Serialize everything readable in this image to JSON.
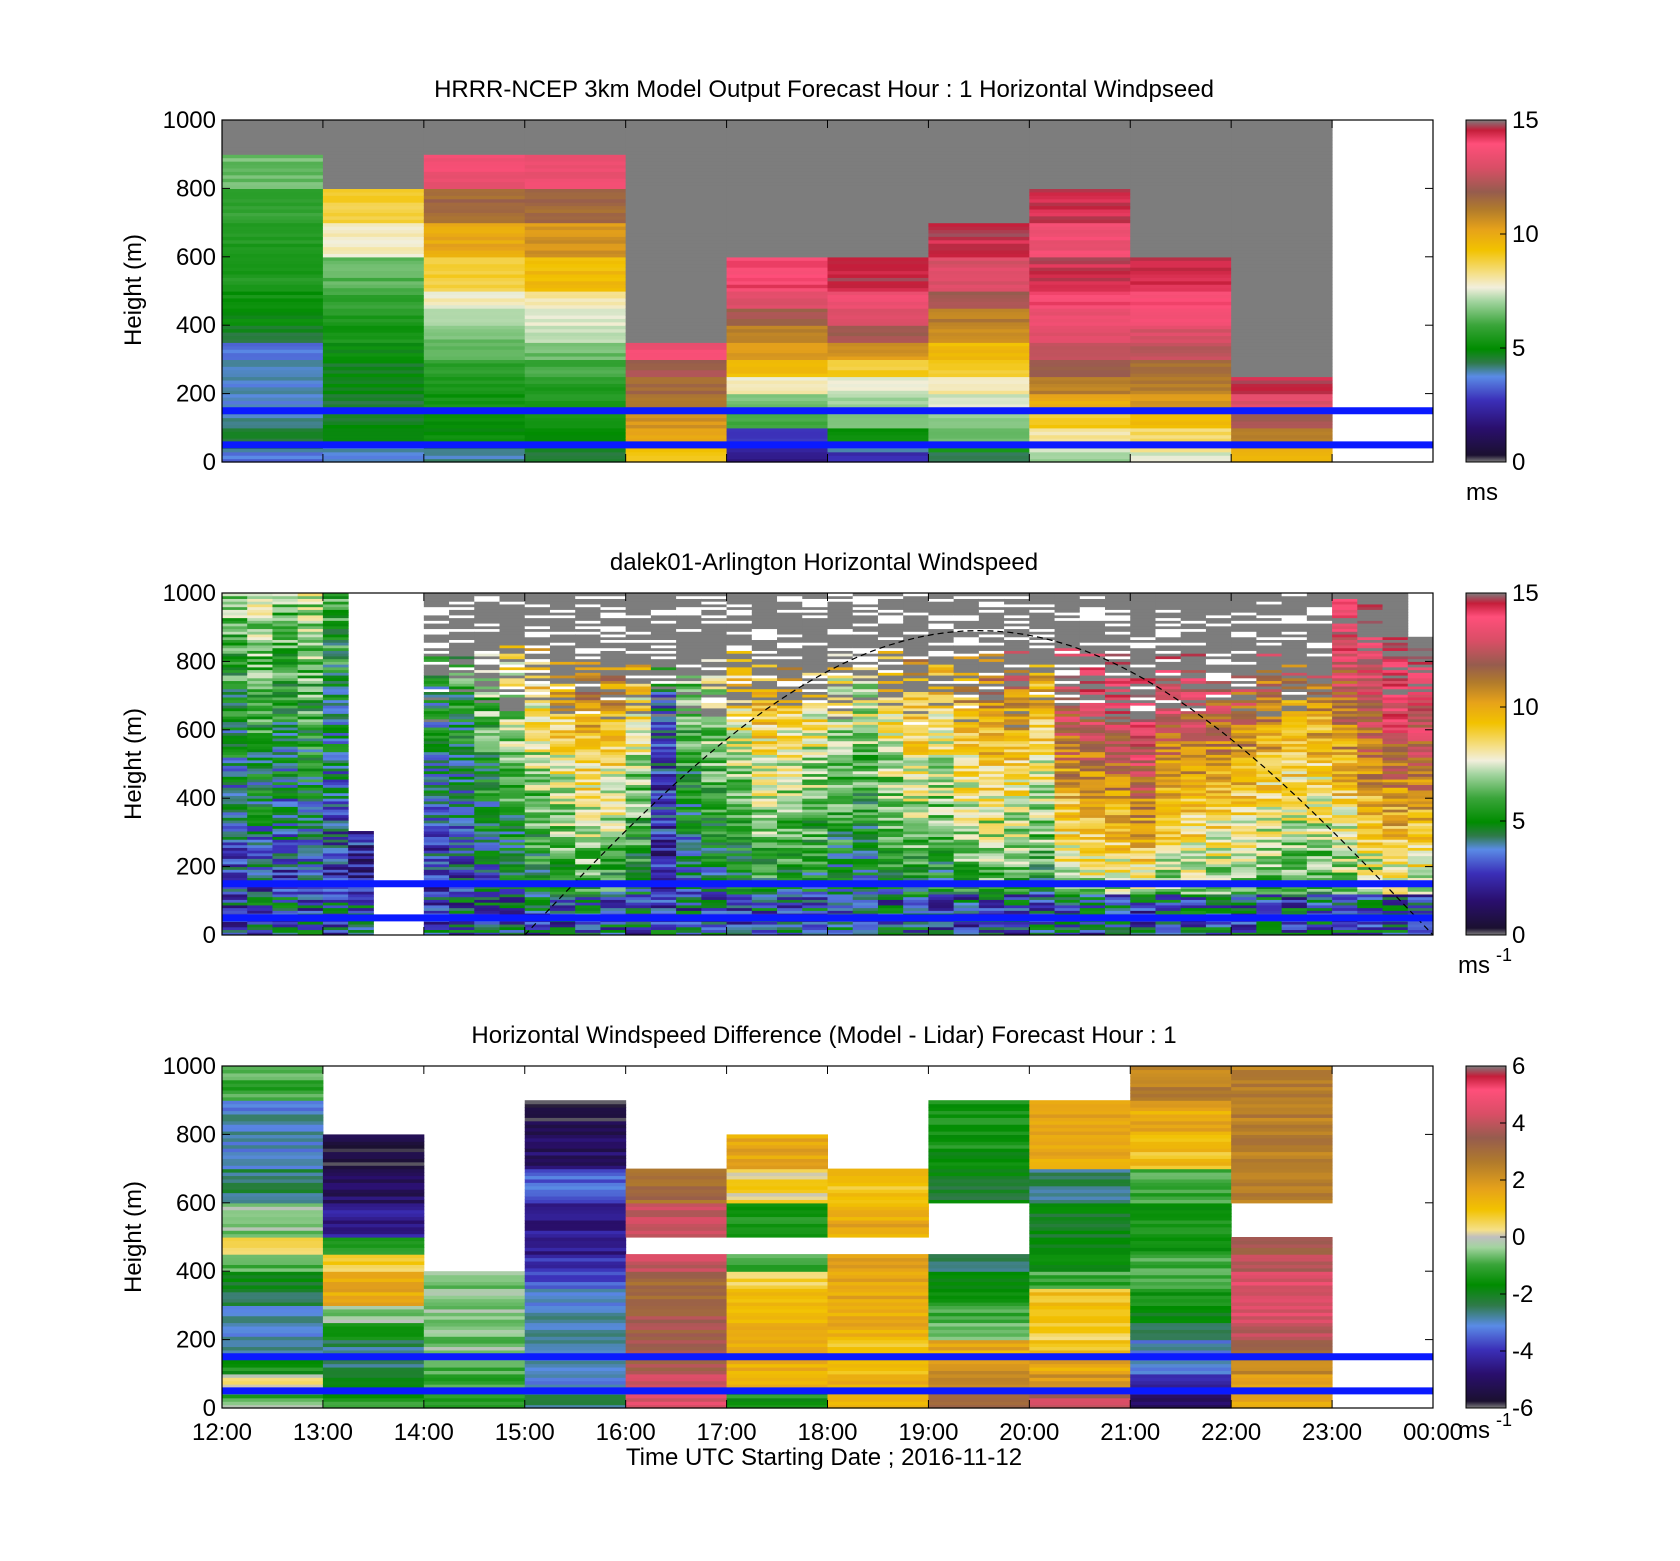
{
  "figure": {
    "xlabel": "Time UTC  Starting Date ; 2016-11-12",
    "x_ticks": [
      "12:00",
      "13:00",
      "14:00",
      "15:00",
      "16:00",
      "17:00",
      "18:00",
      "19:00",
      "20:00",
      "21:00",
      "22:00",
      "23:00",
      "00:00"
    ]
  },
  "chart_data": [
    {
      "type": "heatmap",
      "title": "HRRR-NCEP 3km Model Output   Forecast Hour : 1 Horizontal Windpseed",
      "ylabel": "Height (m)",
      "xlim": [
        0,
        12
      ],
      "ylim": [
        0,
        1000
      ],
      "y_ticks": [
        "0",
        "200",
        "400",
        "600",
        "800",
        "1000"
      ],
      "colorbar": {
        "ticks": [
          "0",
          "5",
          "10",
          "15"
        ],
        "range": [
          0,
          15
        ],
        "unit_label": "ms",
        "unit_sup": ""
      },
      "reference_lines_m": [
        50,
        150
      ],
      "profile_heights_m": [
        0,
        30,
        60,
        100,
        150,
        200,
        250,
        300,
        350,
        400,
        450,
        500,
        600,
        700,
        800,
        900,
        1000
      ],
      "profiles": [
        {
          "hour": 0,
          "values": [
            3.5,
            4.2,
            4.5,
            4.0,
            3.8,
            3.8,
            3.8,
            3.5,
            4.5,
            5.0,
            5.2,
            5.5,
            5.5,
            5.8,
            6.5,
            0.0
          ]
        },
        {
          "hour": 1,
          "values": [
            3.8,
            4.0,
            4.6,
            4.8,
            4.5,
            4.8,
            4.8,
            5.0,
            5.3,
            5.6,
            5.9,
            6.3,
            7.8,
            8.8,
            0.0,
            0.0
          ]
        },
        {
          "hour": 2,
          "values": [
            4.0,
            4.3,
            5.0,
            5.1,
            5.3,
            5.5,
            5.8,
            6.2,
            6.6,
            7.4,
            7.8,
            8.8,
            10.0,
            11.5,
            13.5,
            0.0
          ]
        },
        {
          "hour": 3,
          "values": [
            4.3,
            4.6,
            4.9,
            5.2,
            5.4,
            5.6,
            6.0,
            6.5,
            7.2,
            7.5,
            8.0,
            9.5,
            10.5,
            11.5,
            13.5,
            0.0
          ]
        },
        {
          "hour": 4,
          "values": [
            9.0,
            9.5,
            10.0,
            10.5,
            11.0,
            11.5,
            12.0,
            13.5,
            0.0,
            0.0,
            0.0,
            0.0,
            0.0,
            0.0,
            0.0,
            0.0
          ]
        },
        {
          "hour": 5,
          "values": [
            2.0,
            2.5,
            3.0,
            6.0,
            6.5,
            7.8,
            9.5,
            10.5,
            11.0,
            12.0,
            13.0,
            14.0,
            0.0,
            0.0,
            0.0,
            0.0
          ]
        },
        {
          "hour": 6,
          "values": [
            2.5,
            4.0,
            5.0,
            6.5,
            7.0,
            7.5,
            9.0,
            10.5,
            12.0,
            13.0,
            13.5,
            14.5,
            0.0,
            0.0,
            0.0,
            0.0
          ]
        },
        {
          "hour": 7,
          "values": [
            4.5,
            5.5,
            6.5,
            7.0,
            7.5,
            8.0,
            9.0,
            9.5,
            10.5,
            11.0,
            12.0,
            13.0,
            14.5,
            0.0,
            0.0,
            0.0
          ]
        },
        {
          "hour": 8,
          "values": [
            7.0,
            7.5,
            8.0,
            9.0,
            10.0,
            11.0,
            12.0,
            12.5,
            13.0,
            13.5,
            14.0,
            14.5,
            13.5,
            14.5,
            0.0,
            0.0
          ]
        },
        {
          "hour": 9,
          "values": [
            7.5,
            8.0,
            8.5,
            9.5,
            10.5,
            11.0,
            11.5,
            12.5,
            13.0,
            13.5,
            14.0,
            14.5,
            0.0,
            0.0,
            0.0,
            0.0
          ]
        },
        {
          "hour": 10,
          "values": [
            9.5,
            10.0,
            11.0,
            12.0,
            13.0,
            14.5,
            0.0,
            0.0,
            0.0,
            0.0,
            0.0,
            0.0,
            0.0,
            0.0,
            0.0,
            0.0
          ]
        }
      ]
    },
    {
      "type": "heatmap",
      "title": "dalek01-Arlington  Horizontal Windspeed",
      "ylabel": "Height (m)",
      "xlim": [
        0,
        12
      ],
      "ylim": [
        0,
        1000
      ],
      "y_ticks": [
        "0",
        "200",
        "400",
        "600",
        "800",
        "1000"
      ],
      "colorbar": {
        "ticks": [
          "0",
          "5",
          "10",
          "15"
        ],
        "range": [
          0,
          15
        ],
        "unit_label": "ms",
        "unit_sup": "-1"
      },
      "reference_lines_m": [
        50,
        150
      ],
      "boundary_layer_curve": {
        "start_hour": 3.0,
        "end_hour": 12.0,
        "peak_hour": 7.5,
        "peak_height_m": 890
      },
      "profile_times_h": [
        0.0,
        0.25,
        0.5,
        0.75,
        1.0,
        1.25,
        1.5,
        1.75,
        2.0,
        2.25,
        2.5,
        2.75,
        3.0,
        3.25,
        3.5,
        3.75,
        4.0,
        4.25,
        4.5,
        4.75,
        5.0,
        5.25,
        5.5,
        5.75,
        6.0,
        6.25,
        6.5,
        6.75,
        7.0,
        7.25,
        7.5,
        7.75,
        8.0,
        8.25,
        8.5,
        8.75,
        9.0,
        9.25,
        9.5,
        9.75,
        10.0,
        10.25,
        10.5,
        10.75,
        11.0,
        11.25,
        11.5,
        11.75
      ],
      "profiles_mean_speed": [
        5.0,
        5.5,
        5.0,
        5.5,
        4.5,
        3.5,
        0.0,
        0.0,
        4.5,
        5.0,
        6.0,
        7.0,
        8.0,
        9.0,
        10.0,
        9.5,
        8.0,
        3.5,
        6.0,
        7.0,
        8.0,
        9.0,
        8.5,
        8.0,
        7.5,
        7.0,
        8.0,
        9.0,
        8.5,
        9.5,
        10.0,
        10.0,
        9.0,
        12.0,
        12.5,
        13.0,
        14.0,
        12.0,
        12.0,
        11.5,
        11.0,
        10.5,
        10.0,
        10.0,
        11.0,
        12.0,
        13.0,
        13.0
      ],
      "profiles_top_height_m": [
        1000,
        1000,
        1000,
        1000,
        1000,
        300,
        0,
        0,
        1000,
        1000,
        1000,
        1000,
        1000,
        1000,
        1000,
        1000,
        1000,
        1000,
        1000,
        1000,
        1000,
        1000,
        1000,
        1000,
        1000,
        1000,
        1000,
        1000,
        1000,
        1000,
        1000,
        1000,
        1000,
        1000,
        1000,
        1000,
        1000,
        1000,
        1000,
        1000,
        1000,
        1000,
        1000,
        1000,
        1000,
        1000,
        1000,
        870
      ]
    },
    {
      "type": "heatmap",
      "title": "Horizontal Windspeed Difference (Model - Lidar) Forecast Hour : 1",
      "ylabel": "Height (m)",
      "xlim": [
        0,
        12
      ],
      "ylim": [
        0,
        1000
      ],
      "y_ticks": [
        "0",
        "200",
        "400",
        "600",
        "800",
        "1000"
      ],
      "colorbar": {
        "ticks": [
          "-6",
          "-4",
          "-2",
          "0",
          "2",
          "4",
          "6"
        ],
        "range": [
          -6,
          6
        ],
        "unit_label": "ms",
        "unit_sup": "-1"
      },
      "reference_lines_m": [
        50,
        150
      ],
      "profile_heights_m": [
        0,
        30,
        60,
        100,
        150,
        200,
        250,
        300,
        350,
        400,
        450,
        500,
        600,
        700,
        800,
        900,
        1000
      ],
      "profiles": [
        {
          "hour": 0,
          "values": [
            -0.5,
            -1.0,
            0.3,
            -1.5,
            -2.5,
            -3.0,
            -2.8,
            -2.5,
            -2.0,
            -1.0,
            0.5,
            -0.5,
            -2.5,
            -3.0,
            -3.0,
            -1.0
          ]
        },
        {
          "hour": 1,
          "values": [
            -1.0,
            -1.5,
            -2.0,
            -2.5,
            -2.5,
            -1.5,
            -0.5,
            1.5,
            1.5,
            0.8,
            -1.5,
            -4.5,
            -5.0,
            -5.5,
            null,
            null
          ]
        },
        {
          "hour": 2,
          "values": [
            -1.0,
            -1.0,
            -1.0,
            -1.0,
            -0.5,
            -0.5,
            -0.5,
            -0.5,
            -0.5,
            null,
            null,
            null,
            null,
            null,
            null,
            null
          ]
        },
        {
          "hour": 3,
          "values": [
            -2.5,
            -2.5,
            -3.0,
            -3.0,
            -3.0,
            -3.0,
            -3.0,
            -3.0,
            -3.5,
            -4.0,
            -4.5,
            -4.5,
            -3.5,
            -5.0,
            -5.5,
            null
          ]
        },
        {
          "hour": 4,
          "values": [
            4.5,
            4.5,
            4.0,
            3.5,
            3.5,
            3.5,
            3.5,
            3.0,
            3.0,
            4.0,
            null,
            4.0,
            3.0,
            null,
            null,
            null
          ]
        },
        {
          "hour": 5,
          "values": [
            -1.5,
            -1.0,
            1.5,
            1.5,
            1.5,
            1.5,
            1.0,
            1.0,
            0.5,
            -1.0,
            null,
            -1.5,
            0.5,
            1.5,
            null,
            null
          ]
        },
        {
          "hour": 6,
          "values": [
            1.5,
            1.5,
            1.5,
            1.0,
            1.0,
            1.5,
            1.5,
            1.5,
            1.5,
            1.5,
            null,
            1.5,
            1.0,
            null,
            null,
            null
          ]
        },
        {
          "hour": 7,
          "values": [
            3.0,
            3.0,
            2.5,
            2.0,
            1.5,
            -0.5,
            -1.0,
            -1.5,
            -2.0,
            -2.5,
            null,
            null,
            -2.0,
            -1.5,
            -1.5,
            null
          ]
        },
        {
          "hour": 8,
          "values": [
            4.0,
            3.5,
            2.0,
            1.5,
            1.0,
            0.5,
            1.0,
            1.0,
            -1.0,
            -1.5,
            -2.0,
            -2.0,
            -2.5,
            1.5,
            1.5,
            null
          ]
        },
        {
          "hour": 9,
          "values": [
            -5.0,
            -5.0,
            -4.0,
            -3.0,
            -3.0,
            -2.5,
            -2.0,
            -1.5,
            -1.0,
            -1.0,
            -1.5,
            -1.5,
            -1.0,
            1.0,
            1.5,
            2.5
          ]
        },
        {
          "hour": 10,
          "values": [
            1.5,
            1.5,
            2.0,
            2.5,
            3.0,
            4.0,
            4.5,
            4.5,
            4.5,
            4.0,
            3.5,
            null,
            2.5,
            2.5,
            2.5,
            2.5
          ]
        }
      ]
    }
  ]
}
